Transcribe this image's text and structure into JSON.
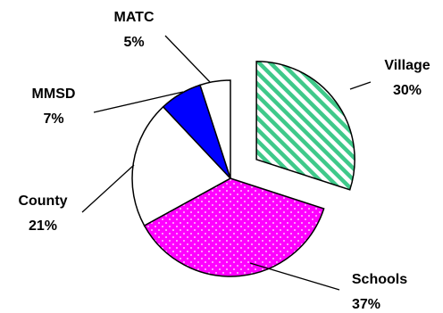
{
  "chart_data": {
    "type": "pie",
    "title": "",
    "exploded": [
      "Village"
    ],
    "slices": [
      {
        "name": "Village",
        "value": 30,
        "label": "30%",
        "color": "#3fc98a",
        "pattern": "diagonal-stripes"
      },
      {
        "name": "Schools",
        "value": 37,
        "label": "37%",
        "color": "#ff00ff",
        "pattern": "dots"
      },
      {
        "name": "County",
        "value": 21,
        "label": "21%",
        "color": "#ffffff",
        "pattern": "none"
      },
      {
        "name": "MMSD",
        "value": 7,
        "label": "7%",
        "color": "#0000ff",
        "pattern": "none"
      },
      {
        "name": "MATC",
        "value": 5,
        "label": "5%",
        "color": "#ffffff",
        "pattern": "none"
      }
    ]
  }
}
